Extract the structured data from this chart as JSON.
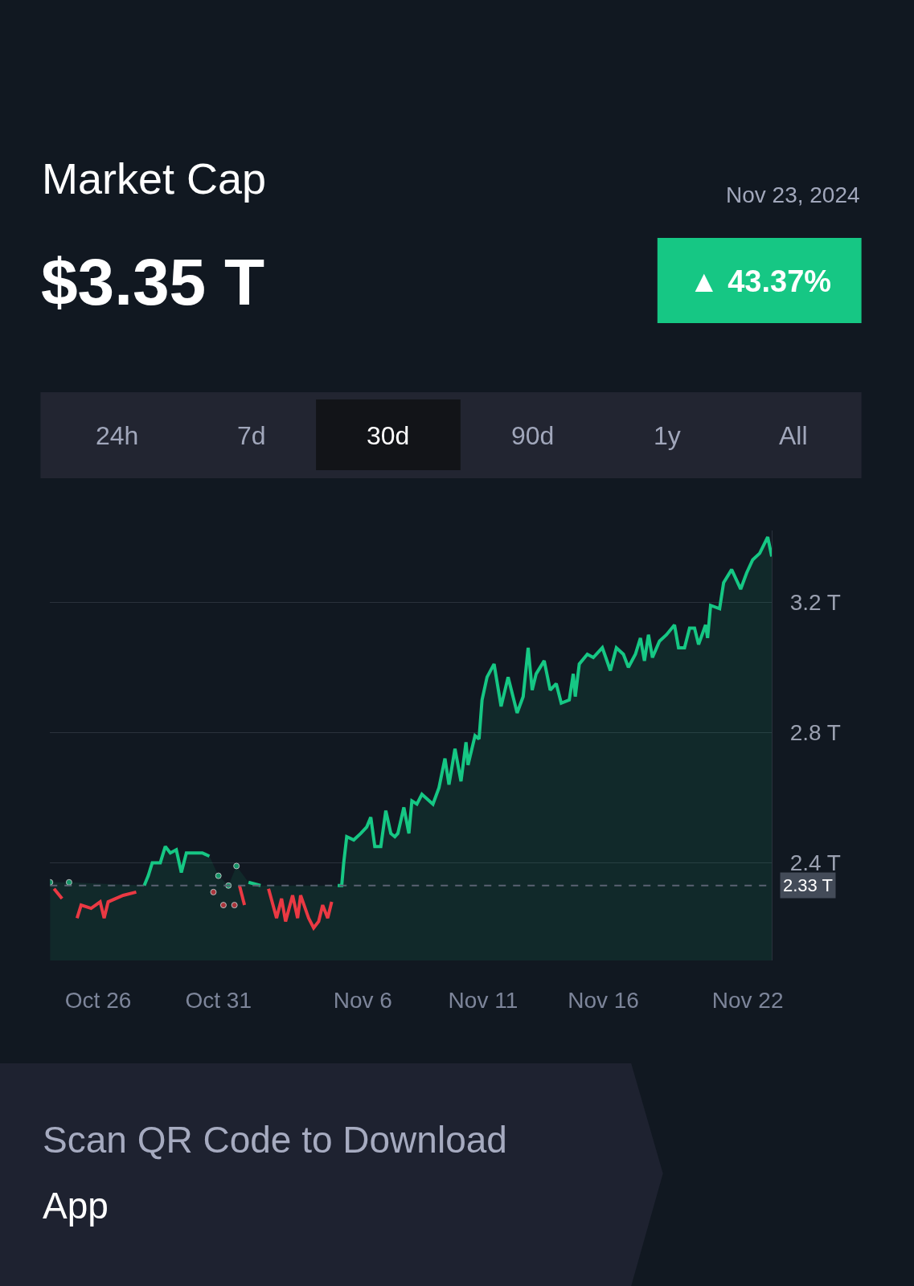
{
  "chart_data": {
    "type": "area",
    "title": "Market Cap",
    "subtitle": "$3.35 T",
    "annotations": [
      "Nov 23, 2024",
      "▲ 43.37%",
      "24h",
      "7d",
      "30d",
      "90d",
      "1y",
      "All",
      "Scan QR Code to Download",
      "App"
    ],
    "x": [
      "2024-10-24T00:00",
      "2024-10-24T04:00",
      "2024-10-24T12:00",
      "2024-10-24T19:00",
      "2024-10-25T03:00",
      "2024-10-25T07:00",
      "2024-10-25T17:00",
      "2024-10-26T02:00",
      "2024-10-26T06:00",
      "2024-10-26T10:00",
      "2024-10-27T01:00",
      "2024-10-27T14:00",
      "2024-10-27T22:00",
      "2024-10-28T02:00",
      "2024-10-28T06:00",
      "2024-10-28T14:00",
      "2024-10-28T19:00",
      "2024-10-29T00:00",
      "2024-10-29T06:00",
      "2024-10-29T11:00",
      "2024-10-29T16:00",
      "2024-10-30T08:00",
      "2024-10-30T15:00",
      "2024-10-30T19:00",
      "2024-10-31T00:00",
      "2024-10-31T05:00",
      "2024-10-31T10:00",
      "2024-10-31T16:00",
      "2024-10-31T18:00",
      "2024-10-31T21:00",
      "2024-11-01T02:00",
      "2024-11-01T06:00",
      "2024-11-01T18:00",
      "2024-11-02T02:00",
      "2024-11-02T10:00",
      "2024-11-02T15:00",
      "2024-11-02T19:00",
      "2024-11-03T02:00",
      "2024-11-03T07:00",
      "2024-11-03T10:00",
      "2024-11-03T18:00",
      "2024-11-03T23:00",
      "2024-11-04T04:00",
      "2024-11-04T08:00",
      "2024-11-04T13:00",
      "2024-11-04T17:00",
      "2024-11-04T23:00",
      "2024-11-05T03:00",
      "2024-11-05T05:00",
      "2024-11-05T08:00",
      "2024-11-05T15:00",
      "2024-11-05T22:00",
      "2024-11-06T04:00",
      "2024-11-06T08:00",
      "2024-11-06T12:00",
      "2024-11-06T18:00",
      "2024-11-06T23:00",
      "2024-11-07T04:00",
      "2024-11-07T08:00",
      "2024-11-07T11:00",
      "2024-11-07T17:00",
      "2024-11-07T22:00",
      "2024-11-08T01:00",
      "2024-11-08T06:00",
      "2024-11-08T11:00",
      "2024-11-08T22:00",
      "2024-11-09T04:00",
      "2024-11-09T10:00",
      "2024-11-09T14:00",
      "2024-11-09T20:00",
      "2024-11-10T02:00",
      "2024-11-10T07:00",
      "2024-11-10T09:00",
      "2024-11-10T16:00",
      "2024-11-10T20:00",
      "2024-11-10T23:00",
      "2024-11-11T04:00",
      "2024-11-11T11:00",
      "2024-11-11T18:00",
      "2024-11-12T01:00",
      "2024-11-12T10:00",
      "2024-11-12T16:00",
      "2024-11-12T21:00",
      "2024-11-13T01:00",
      "2024-11-13T05:00",
      "2024-11-13T13:00",
      "2024-11-13T19:00",
      "2024-11-14T01:00",
      "2024-11-14T06:00",
      "2024-11-14T14:00",
      "2024-11-14T18:00",
      "2024-11-14T20:00",
      "2024-11-15T00:00",
      "2024-11-15T08:00",
      "2024-11-15T14:00",
      "2024-11-15T23:00",
      "2024-11-16T07:00",
      "2024-11-16T13:00",
      "2024-11-16T20:00",
      "2024-11-17T01:00",
      "2024-11-17T08:00",
      "2024-11-17T13:00",
      "2024-11-17T17:00",
      "2024-11-17T21:00",
      "2024-11-18T01:00",
      "2024-11-18T08:00",
      "2024-11-18T15:00",
      "2024-11-18T23:00",
      "2024-11-19T03:00",
      "2024-11-19T09:00",
      "2024-11-19T14:00",
      "2024-11-19T19:00",
      "2024-11-19T23:00",
      "2024-11-20T06:00",
      "2024-11-20T08:00",
      "2024-11-20T11:00",
      "2024-11-20T20:00",
      "2024-11-21T00:00",
      "2024-11-21T08:00",
      "2024-11-21T17:00",
      "2024-11-21T23:00",
      "2024-11-22T05:00",
      "2024-11-22T12:00",
      "2024-11-22T20:00",
      "2024-11-23T00:00"
    ],
    "series": [
      {
        "color": "#16c784",
        "values": [
          2.34,
          null,
          null,
          2.34,
          null,
          null,
          null,
          null,
          null,
          null,
          null,
          null,
          2.33,
          2.36,
          2.4,
          2.4,
          2.45,
          2.43,
          2.44,
          2.37,
          2.43,
          2.43,
          2.42,
          null,
          2.36,
          null,
          2.33,
          null,
          2.39,
          null,
          null,
          2.34,
          2.33,
          null,
          null,
          null,
          null,
          null,
          null,
          null,
          null,
          null,
          null,
          null,
          null,
          null,
          2.33,
          2.33,
          2.4,
          2.48,
          2.47,
          2.49,
          2.51,
          2.54,
          2.45,
          2.45,
          2.56,
          2.49,
          2.48,
          2.49,
          2.57,
          2.49,
          2.59,
          2.58,
          2.61,
          2.58,
          2.63,
          2.72,
          2.64,
          2.75,
          2.65,
          2.77,
          2.7,
          2.79,
          2.78,
          2.9,
          2.97,
          3.01,
          2.88,
          2.97,
          2.86,
          2.91,
          3.06,
          2.93,
          2.98,
          3.02,
          2.93,
          2.95,
          2.89,
          2.9,
          2.98,
          2.91,
          3.01,
          3.04,
          3.03,
          3.06,
          2.99,
          3.06,
          3.04,
          3.0,
          3.04,
          3.09,
          3.02,
          3.1,
          3.03,
          3.08,
          3.1,
          3.13,
          3.06,
          3.06,
          3.12,
          3.12,
          3.07,
          3.13,
          3.09,
          3.19,
          3.18,
          3.26,
          3.3,
          3.24,
          3.29,
          3.33,
          3.35,
          3.4,
          3.34
        ]
      },
      {
        "type": "line",
        "color": "#ea3943",
        "values": [
          null,
          2.32,
          2.29,
          null,
          2.23,
          2.27,
          2.26,
          2.28,
          2.23,
          2.28,
          2.3,
          2.31,
          null,
          null,
          null,
          null,
          null,
          null,
          null,
          null,
          null,
          null,
          null,
          2.31,
          null,
          2.27,
          null,
          2.27,
          null,
          2.33,
          2.27,
          null,
          null,
          2.32,
          2.23,
          2.29,
          2.22,
          2.3,
          2.23,
          2.3,
          2.23,
          2.2,
          2.22,
          2.27,
          2.23,
          2.28,
          null,
          null,
          null,
          null,
          null,
          null,
          null,
          null,
          null,
          null,
          null,
          null,
          null,
          null,
          null,
          null,
          null,
          null,
          null,
          null,
          null,
          null,
          null,
          null,
          null,
          null,
          null,
          null,
          null,
          null,
          null,
          null,
          null,
          null,
          null,
          null,
          null,
          null,
          null,
          null,
          null,
          null,
          null,
          null,
          null,
          null,
          null,
          null,
          null,
          null,
          null,
          null,
          null,
          null,
          null,
          null,
          null,
          null,
          null,
          null,
          null,
          null,
          null,
          null,
          null,
          null,
          null,
          null,
          null,
          null,
          null,
          null,
          null,
          null,
          null,
          null,
          null,
          null,
          null
        ]
      }
    ],
    "xlim": [
      "2024-10-24T00:00",
      "2024-11-23T00:00"
    ],
    "xticks": [
      {
        "value": "2024-10-26",
        "label": "Oct 26"
      },
      {
        "value": "2024-10-31",
        "label": "Oct 31"
      },
      {
        "value": "2024-11-06",
        "label": "Nov 6"
      },
      {
        "value": "2024-11-11",
        "label": "Nov 11"
      },
      {
        "value": "2024-11-16",
        "label": "Nov 16"
      },
      {
        "value": "2024-11-22",
        "label": "Nov 22"
      }
    ],
    "ylim": [
      2.1,
      3.42
    ],
    "yticks": [
      {
        "value": 2.4,
        "label": "2.4 T"
      },
      {
        "value": 2.8,
        "label": "2.8 T"
      },
      {
        "value": 3.2,
        "label": "3.2 T"
      }
    ],
    "ref_lines": [
      {
        "axis": "y",
        "value": 2.33,
        "label": "2.33 T",
        "color": "#5a6272",
        "line_style": "dashed"
      }
    ],
    "grid": "y"
  }
}
